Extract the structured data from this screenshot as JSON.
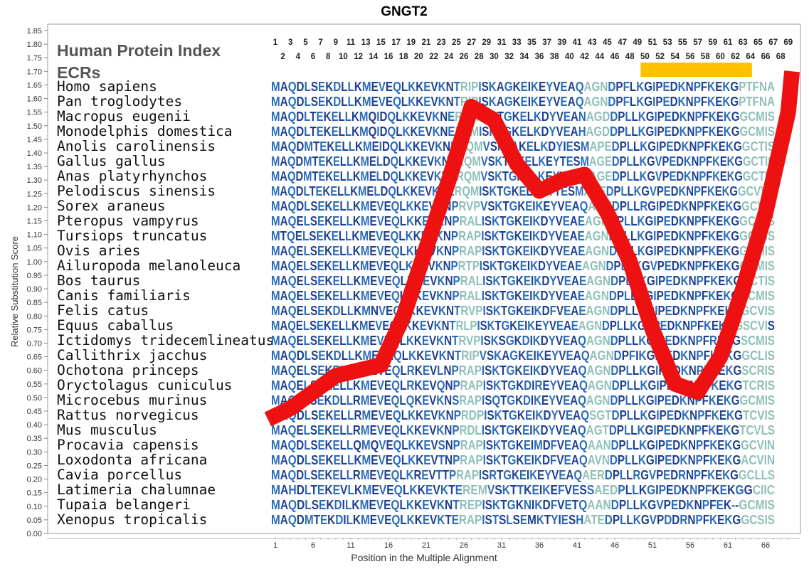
{
  "chart_data": {
    "type": "line",
    "title": "GNGT2",
    "xlabel": "Position in the Multiple Alignment",
    "ylabel": "Relative Substitution Score",
    "ylim": [
      0,
      1.85
    ],
    "y_ticks": [
      "0.00",
      "0.05",
      "0.10",
      "0.15",
      "0.20",
      "0.25",
      "0.30",
      "0.35",
      "0.40",
      "0.45",
      "0.50",
      "0.55",
      "0.60",
      "0.65",
      "0.70",
      "0.75",
      "0.80",
      "0.85",
      "0.90",
      "0.95",
      "1.00",
      "1.05",
      "1.10",
      "1.15",
      "1.20",
      "1.25",
      "1.30",
      "1.35",
      "1.40",
      "1.45",
      "1.50",
      "1.55",
      "1.60",
      "1.65",
      "1.70",
      "1.75",
      "1.80",
      "1.85"
    ],
    "x_ticks": [
      "1",
      "6",
      "11",
      "16",
      "21",
      "26",
      "31",
      "36",
      "41",
      "46",
      "51",
      "56",
      "61",
      "66"
    ],
    "legend_label": "Human Protein Index",
    "ecr_label": "ECRs",
    "top_positions_odd": [
      "1",
      "3",
      "5",
      "7",
      "9",
      "11",
      "13",
      "15",
      "17",
      "19",
      "21",
      "23",
      "25",
      "27",
      "29",
      "31",
      "33",
      "35",
      "37",
      "39",
      "41",
      "43",
      "45",
      "47",
      "49",
      "51",
      "53",
      "55",
      "57",
      "59",
      "61",
      "63",
      "65",
      "67",
      "69"
    ],
    "top_positions_even": [
      "2",
      "4",
      "6",
      "8",
      "10",
      "12",
      "14",
      "16",
      "18",
      "20",
      "22",
      "24",
      "26",
      "28",
      "30",
      "32",
      "34",
      "36",
      "38",
      "40",
      "42",
      "44",
      "46",
      "48",
      "50",
      "52",
      "54",
      "56",
      "58",
      "60",
      "62",
      "64",
      "66",
      "68"
    ],
    "ecr_regions": [
      [
        50,
        64
      ]
    ],
    "colors": {
      "line": "#ee1111",
      "ecr": "#ffc000",
      "seq_dark": "#1f3f8f",
      "seq_mid": "#2a6cb8",
      "seq_light": "#8fc0b8"
    },
    "series": [
      {
        "x": [
          0,
          3,
          6,
          9,
          12,
          15,
          18,
          21,
          24,
          27,
          30,
          33,
          36,
          39,
          42,
          45,
          48,
          51,
          54,
          57,
          60,
          63,
          66,
          69,
          69.5
        ],
        "y": [
          0.42,
          0.46,
          0.52,
          0.58,
          0.6,
          0.62,
          0.8,
          1.05,
          1.3,
          1.57,
          1.52,
          1.36,
          1.26,
          1.3,
          1.32,
          1.18,
          1.0,
          0.75,
          0.55,
          0.52,
          0.65,
          0.9,
          1.18,
          1.55,
          1.7
        ]
      }
    ],
    "rows": [
      {
        "species": "Homo sapiens",
        "seq": "MAQDLSEKDLLKMEVEQLKKEVKNTRIPISKAGKEIKEYVEAQAGNDPFLKGIPEDKNPFKEKGPTFNA"
      },
      {
        "species": "Pan troglodytes",
        "seq": "MAQDLSEKDLLKMEVEQLKKEVKNTRIPISKAGKEIKEYVEAQAGNDPFLKGIPEDKNPFKEKGPTFNA"
      },
      {
        "species": "Macropus eugenii",
        "seq": "MAQDLTEKELLKMQIDQLKKEVKNERAMISKTGKELKDYVEANAGDDPLLKGIPEDKNPFKEKGGCMIS"
      },
      {
        "species": "Monodelphis domestica",
        "seq": "MAQDLTEKELLKMQIDQLKKEVKNERSMISKTGKELKDYVEAHAGDDPLLKGIPEDKNPFKEKGGCMIS"
      },
      {
        "species": "Anolis carolinensis",
        "seq": "MAQDMTEKELLKMEIDQLKKEVKNERQMVSKTAKELKDYIESMAPEDPLLKGIPEDKNPFKEKGGCTIS"
      },
      {
        "species": "Gallus gallus",
        "seq": "MAQDMTEKELLKMELDQLKKEVKNERQMVSKTGKELKEYTESMAGEDPLLKGVPEDKNPFKEKGGCTIS"
      },
      {
        "species": "Anas platyrhynchos",
        "seq": "MAQDMTEKELLKMELDQLKKEVKNERQMVSKTGKELKEYVESMAGEDPLLKGVPEDKNPFKEKGGCTIS"
      },
      {
        "species": "Pelodiscus sinensis",
        "seq": "MAQDLTEKELLKMELDQLKKEVKNERQMISKTGKELKEYTESMAAEDPLLKGVPEDKNPFKEKGGCVVS"
      },
      {
        "species": "Sorex araneus",
        "seq": "MAQDLSEKELLKMEVEQLKKEVRNPRVPVSKTGKEIKEYVEAQAGNDPLLRGIPEDKNPFKEKGGCVIS"
      },
      {
        "species": "Pteropus vampyrus",
        "seq": "MAQELSEKELLKMEVEQLKKEVKNPRALISKTGKEIKDYVEAEAGNDPLLKGIPEDKNPFKEKGGCMIS"
      },
      {
        "species": "Tursiops truncatus",
        "seq": "MTQELSEKELLKMEVEQLKKEVKNPRAPISKTGKEIKDYVEAEAGNDPLLKGIPEDKNPFKEKGGCMIS"
      },
      {
        "species": "Ovis aries",
        "seq": "MAQELSEKELLKMEVEQLKKEVKNPRAPISKTGKEIKDYVEAEAGNDPLLKGIPEDKNPFKEKGGCMIS"
      },
      {
        "species": "Ailuropoda melanoleuca",
        "seq": "MAQELSEKELLKMEVEQLKKEVKNPRTPISKTGKEIKDYVEAEAGNDPLLKGVPEDKNPFKEKGGCMIS"
      },
      {
        "species": "Bos taurus",
        "seq": "MAQELSEKELLKMEVEQLKKEVKNPRALISKTGKEIKDYVEAEAGNDPLLKGIPEDKNPFKEKGGCTIS"
      },
      {
        "species": "Canis familiaris",
        "seq": "MAQELSEKELLKMEVEQLKKEVKNPRALISKTGKEIKDYVEAEAGNDPLLKGIPEDKNPFKEKGGCMIS"
      },
      {
        "species": "Felis catus",
        "seq": "MAQELSEKDLLKMNVEQLKKEVKNTRVPISKTGKEIKDFVEAEAGNDPLLKGIPEDKNPFKEKGGCVIS"
      },
      {
        "species": "Equus caballus",
        "seq": "MAQELSEKELLKMEVEQLKKEVKNTRLPISKTGKEIKEYVEAEAGNDPLLKGVPEDKNPFKEKGGSCVIS"
      },
      {
        "species": "Ictidomys tridecemlineatus",
        "seq": "MAQELSEKELLKMEVEQLKKEVKNTRVPISKSGKDIKDYVEAQAGNDPLLKGIPEDKNPFREKGSCMIS"
      },
      {
        "species": "Callithrix jacchus",
        "seq": "MAQDLSEKDLLKMEVEQLKKEVKNTRIPVSKAGKEIKEYVEAQAGNDPFIKGIPEDKNPFKEKGGCLIS"
      },
      {
        "species": "Ochotona princeps",
        "seq": "MAQELSEKELLKMEVEQLRKEVLNPRAPISKTGKEIKDYVEAQAGNDPLLKGIPEDKNPFKEKGSCRIS"
      },
      {
        "species": "Oryctolagus cuniculus",
        "seq": "MAQELSEKELLKMEVEQLRKEVQNPRAPISKTGKDIREYVEAQAGNDPLLKGIPEDKNPFKEKGTCRIS"
      },
      {
        "species": "Microcebus murinus",
        "seq": "MAQELSEKDLLRMEVEQLQKEVKNSRAPISQTGKDIKEYVEAQAGNDPLLKGIPEDKNPFKEKGGCMIS"
      },
      {
        "species": "Rattus norvegicus",
        "seq": "MAQDLSEKELLRMEVEQLKKEVKNPRDPISKTGKEIKDYVEAQSGTDPLLKGIPEDKNPFKEKGTCVIS"
      },
      {
        "species": "Mus musculus",
        "seq": "MAQELSEKELLRMEVEQLKKEVKNPRDLISKTGKEIKDYVEAQAGTDPLLKGIPEDKNPFKEKGTCVLS"
      },
      {
        "species": "Procavia capensis",
        "seq": "MAQDLSEKELLQMQVEQLKKEVSNPRAPISKTGKEIMDFVEAQAANDPLLKGIPEDKNPFKEKGGCVIN"
      },
      {
        "species": "Loxodonta africana",
        "seq": "MAQDLSEKELLKMEVEQLKKEVTNPRAPISKTGKEIKDFVEAQAVNDPLLKGIPEDKNPFKEKGACVIN"
      },
      {
        "species": "Cavia porcellus",
        "seq": "MAQDLSEKELLRMEVEQLKREVTTPRAPISRTGKEIKEYVEAQAERDPLLRGVPEDRNPFKEKGGCLLS"
      },
      {
        "species": "Latimeria chalumnae",
        "seq": "MAHDLTEKEVLKMEVEQLKKEVKTEREMVSKTTKEIKEFVESSAEDPLLKGIPEDKNPFKEKGGCIIC"
      },
      {
        "species": "Tupaia belangeri",
        "seq": "MAQDLSEKDILKMEVEQLKKEVKNTREPISKTGKNIKDFVETQAANDPLLKGVPEDKNPFEK--GCMIS"
      },
      {
        "species": "Xenopus tropicalis",
        "seq": "MAQDMTEKDILKMEVEQLKKEVKTERAPISTSLSEMKTYIESHATEDPLLKGVPDDRNPFKEKGGCSIS"
      }
    ]
  }
}
